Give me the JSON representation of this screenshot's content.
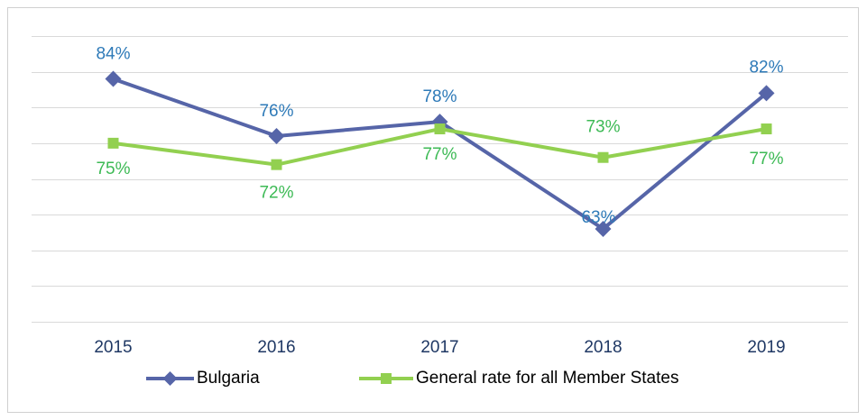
{
  "chart_data": {
    "type": "line",
    "categories": [
      "2015",
      "2016",
      "2017",
      "2018",
      "2019"
    ],
    "series": [
      {
        "name": "Bulgaria",
        "color": "#5665a8",
        "label_color": "#2e7ab8",
        "marker": "diamond",
        "values": [
          84,
          76,
          78,
          63,
          82
        ],
        "value_labels": [
          "84%",
          "76%",
          "78%",
          "63%",
          "82%"
        ]
      },
      {
        "name": "General rate for all Member States",
        "color": "#92d050",
        "label_color": "#3dba55",
        "marker": "square",
        "values": [
          75,
          72,
          77,
          73,
          77
        ],
        "value_labels": [
          "75%",
          "72%",
          "77%",
          "73%",
          "77%"
        ]
      }
    ],
    "ylim": [
      50,
      90
    ],
    "yticks": [
      50,
      55,
      60,
      65,
      70,
      75,
      80,
      85,
      90
    ],
    "grid": true,
    "legend": "bottom"
  }
}
